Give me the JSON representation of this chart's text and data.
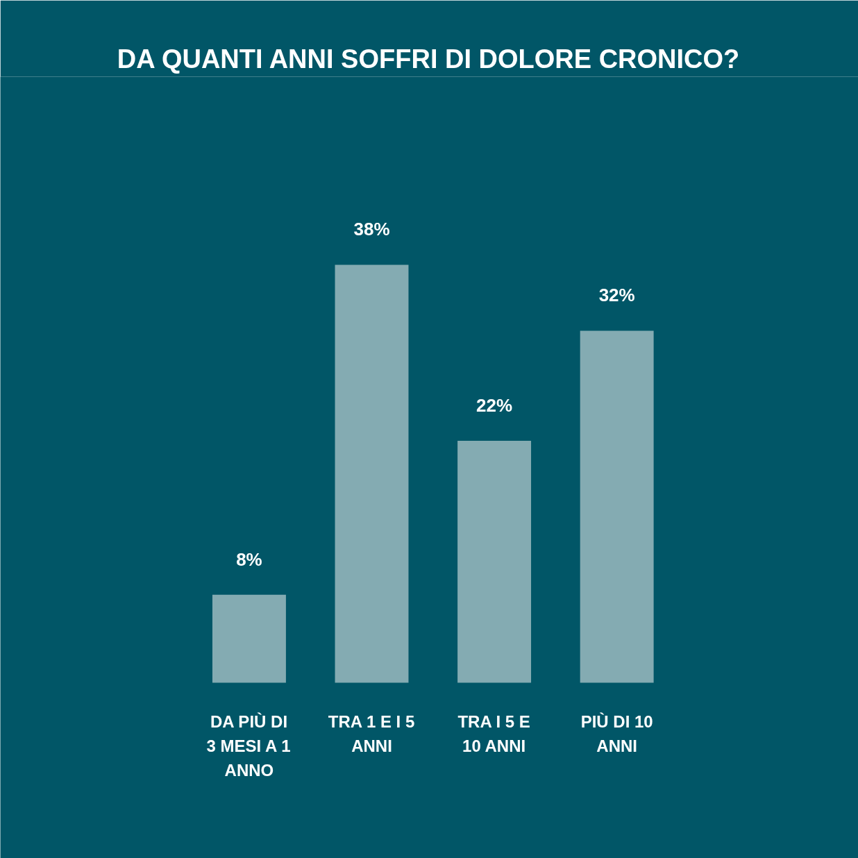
{
  "chart_data": {
    "type": "bar",
    "title": "DA QUANTI ANNI SOFFRI DI DOLORE CRONICO?",
    "categories": [
      "DA PIÙ DI\n3 MESI A 1\nANNO",
      "TRA 1 E I 5\nANNI",
      "TRA I 5 E\n10 ANNI",
      "PIÙ DI 10\nANNI"
    ],
    "values": [
      8,
      38,
      22,
      32
    ],
    "value_labels": [
      "8%",
      "38%",
      "22%",
      "32%"
    ],
    "color": "#84abb2"
  }
}
